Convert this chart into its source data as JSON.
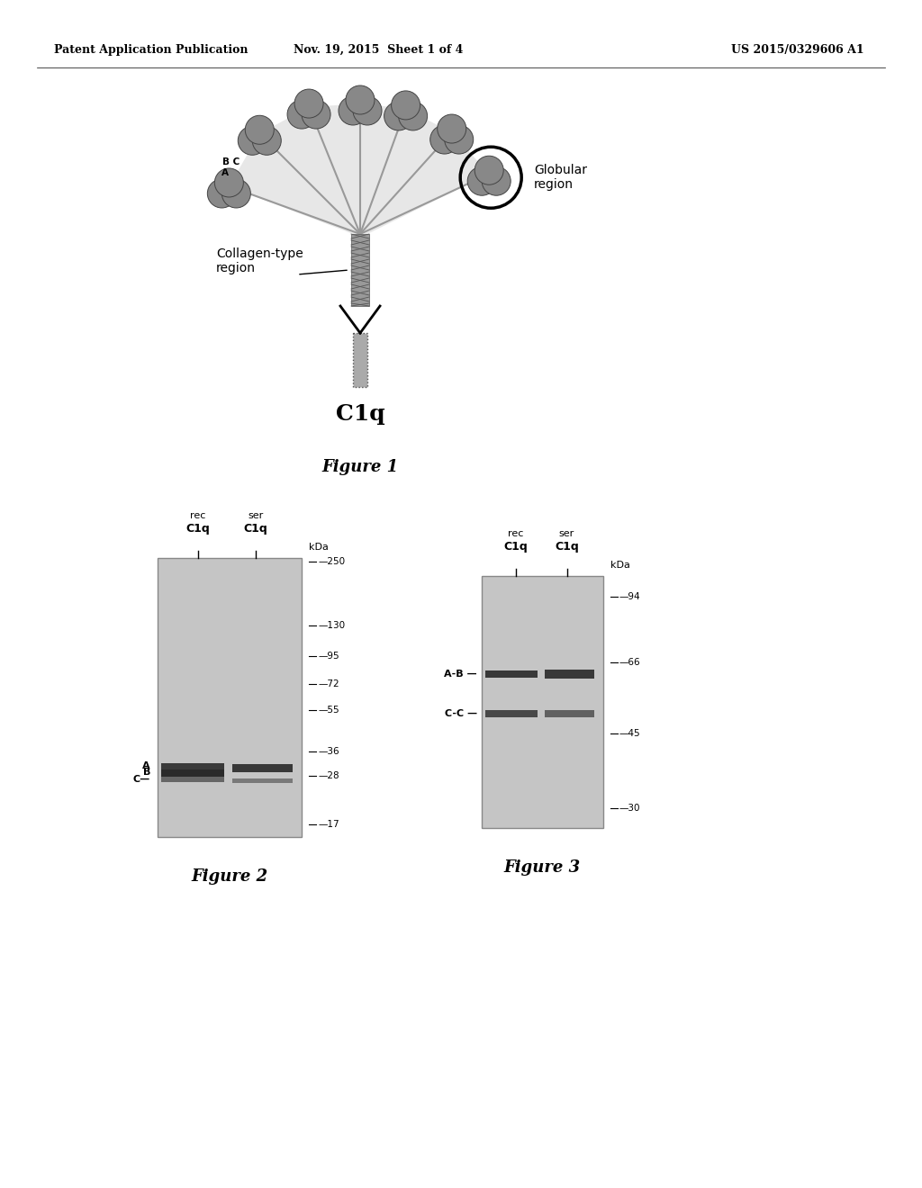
{
  "header_left": "Patent Application Publication",
  "header_mid": "Nov. 19, 2015  Sheet 1 of 4",
  "header_right": "US 2015/0329606 A1",
  "fig1_caption": "Figure 1",
  "fig1_label_c1q": "C1q",
  "fig2_caption": "Figure 2",
  "fig2_col1_top": "rec",
  "fig2_col1_bot": "C1q",
  "fig2_col2_top": "ser",
  "fig2_col2_bot": "C1q",
  "fig2_kda_label": "kDa",
  "fig2_markers": [
    250,
    130,
    95,
    72,
    55,
    36,
    28,
    17
  ],
  "fig3_caption": "Figure 3",
  "fig3_col1_top": "rec",
  "fig3_col1_bot": "C1q",
  "fig3_col2_top": "ser",
  "fig3_col2_bot": "C1q",
  "fig3_kda_label": "kDa",
  "fig3_markers": [
    94,
    66,
    45,
    30
  ],
  "background_color": "#ffffff",
  "text_color": "#000000",
  "header_fontsize": 9,
  "caption_fontsize": 13,
  "label_fontsize": 10,
  "small_fontsize": 8
}
